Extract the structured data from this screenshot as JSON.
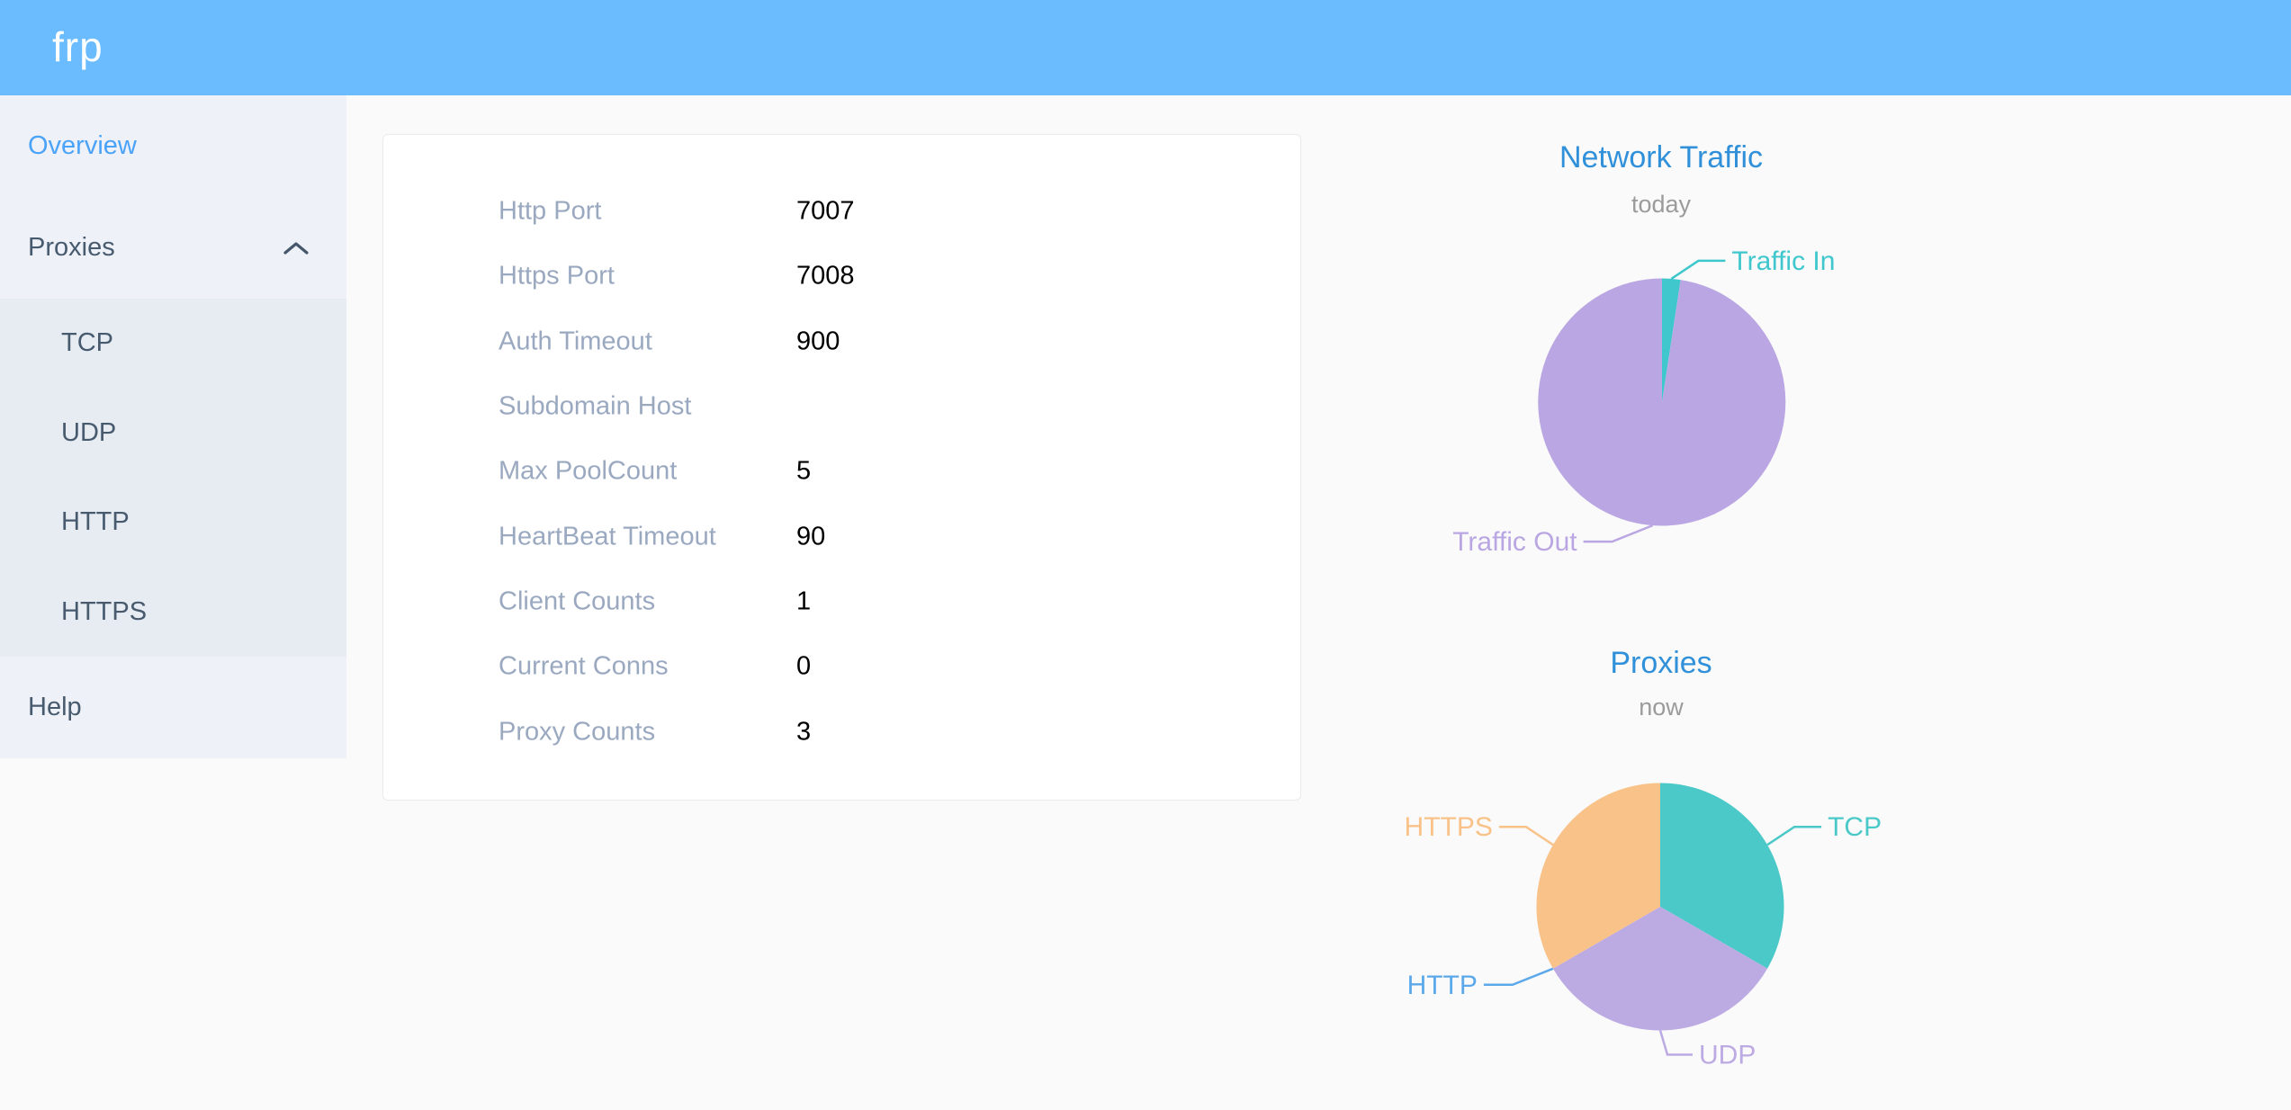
{
  "header": {
    "logo": "frp"
  },
  "sidebar": {
    "overview": {
      "label": "Overview"
    },
    "proxies": {
      "label": "Proxies",
      "expanded": true
    },
    "proxies_children": [
      {
        "label": "TCP"
      },
      {
        "label": "UDP"
      },
      {
        "label": "HTTP"
      },
      {
        "label": "HTTPS"
      }
    ],
    "help": {
      "label": "Help"
    }
  },
  "overview_card": {
    "rows": [
      {
        "label": "Http Port",
        "value": "7007"
      },
      {
        "label": "Https Port",
        "value": "7008"
      },
      {
        "label": "Auth Timeout",
        "value": "900"
      },
      {
        "label": "Subdomain Host",
        "value": ""
      },
      {
        "label": "Max PoolCount",
        "value": "5"
      },
      {
        "label": "HeartBeat Timeout",
        "value": "90"
      },
      {
        "label": "Client Counts",
        "value": "1"
      },
      {
        "label": "Current Conns",
        "value": "0"
      },
      {
        "label": "Proxy Counts",
        "value": "3"
      }
    ]
  },
  "chart_data": [
    {
      "type": "pie",
      "title": "Network Traffic",
      "subtitle": "today",
      "values_unit": "% of total (estimated from arc angles; no numeric labels shown)",
      "legend_position": "callout-labels",
      "slices": [
        {
          "label": "Traffic In",
          "value": 2.4,
          "color": "#3fc7cd",
          "label_pos": "up-right"
        },
        {
          "label": "Traffic Out",
          "value": 97.6,
          "color": "#b9a6e2",
          "label_pos": "down-left"
        }
      ]
    },
    {
      "type": "pie",
      "title": "Proxies",
      "subtitle": "now",
      "values_unit": "proxy count",
      "legend_position": "callout-labels",
      "slices": [
        {
          "label": "TCP",
          "value": 1,
          "color": "#4bc8c8",
          "label_pos": "up-right"
        },
        {
          "label": "UDP",
          "value": 1,
          "color": "#bcaae3",
          "label_pos": "bottom"
        },
        {
          "label": "HTTP",
          "value": 0,
          "color": "#5ba8ea",
          "label_pos": "down-left"
        },
        {
          "label": "HTTPS",
          "value": 1,
          "color": "#f9c288",
          "label_pos": "up-left"
        }
      ]
    }
  ],
  "colors": {
    "header_bg": "#6bbcfe",
    "sidebar_bg": "#eef1f7",
    "submenu_bg": "#e7ebf2",
    "active_menu_text": "#4ba3f8",
    "menu_text": "#475a6e",
    "card_label_text": "#9aa9c0",
    "card_value_text": "#000000",
    "chart_title_text": "#3090d9",
    "chart_subtitle_text": "#9b9b9b",
    "page_bg": "#fafafa"
  }
}
